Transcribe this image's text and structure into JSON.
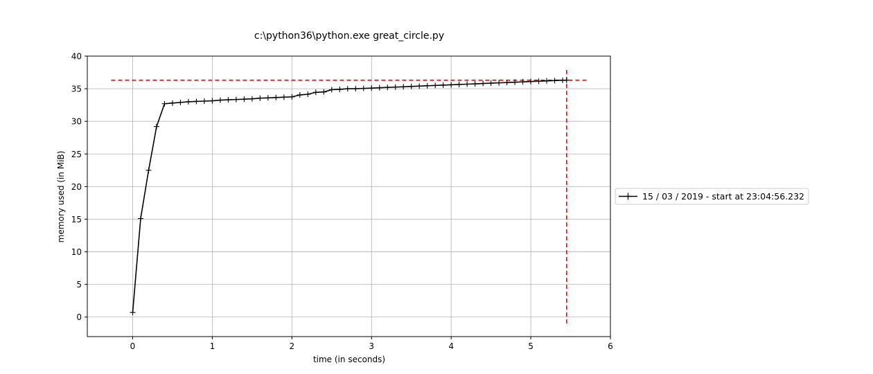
{
  "chart_data": {
    "type": "line",
    "title": "c:\\python36\\python.exe great_circle.py",
    "xlabel": "time (in seconds)",
    "ylabel": "memory used (in MiB)",
    "xlim": [
      -0.57,
      6.0
    ],
    "ylim": [
      -3.0,
      40.0
    ],
    "xticks": [
      0,
      1,
      2,
      3,
      4,
      5,
      6
    ],
    "yticks": [
      0,
      5,
      10,
      15,
      20,
      25,
      30,
      35,
      40
    ],
    "grid": true,
    "legend_position": "right",
    "series": [
      {
        "name": "15 / 03 / 2019 - start at 23:04:56.232",
        "color": "#000000",
        "marker": "plus",
        "x": [
          0.0,
          0.1,
          0.2,
          0.3,
          0.4,
          0.5,
          0.6,
          0.7,
          0.8,
          0.9,
          1.0,
          1.1,
          1.2,
          1.3,
          1.4,
          1.5,
          1.6,
          1.7,
          1.8,
          1.9,
          2.0,
          2.1,
          2.2,
          2.3,
          2.4,
          2.5,
          2.6,
          2.7,
          2.8,
          2.9,
          3.0,
          3.1,
          3.2,
          3.3,
          3.4,
          3.5,
          3.6,
          3.7,
          3.8,
          3.9,
          4.0,
          4.1,
          4.2,
          4.3,
          4.4,
          4.5,
          4.6,
          4.7,
          4.8,
          4.9,
          5.0,
          5.1,
          5.2,
          5.3,
          5.4,
          5.45
        ],
        "y": [
          0.7,
          15.1,
          22.5,
          29.2,
          32.7,
          32.8,
          32.9,
          33.0,
          33.05,
          33.1,
          33.15,
          33.25,
          33.3,
          33.35,
          33.4,
          33.45,
          33.55,
          33.6,
          33.65,
          33.7,
          33.75,
          34.05,
          34.15,
          34.45,
          34.5,
          34.85,
          34.9,
          35.0,
          35.0,
          35.05,
          35.1,
          35.15,
          35.2,
          35.25,
          35.3,
          35.35,
          35.4,
          35.45,
          35.5,
          35.55,
          35.6,
          35.65,
          35.7,
          35.75,
          35.8,
          35.85,
          35.9,
          35.95,
          36.0,
          36.05,
          36.1,
          36.15,
          36.2,
          36.25,
          36.3,
          36.3
        ]
      }
    ],
    "reference_lines": [
      {
        "orientation": "horizontal",
        "value": 36.3,
        "from": -0.27,
        "to": 5.72,
        "color": "#ff0000",
        "style": "dashed"
      },
      {
        "orientation": "vertical",
        "value": 5.45,
        "from": -1.0,
        "to": 38.0,
        "color": "#ff0000",
        "style": "dashed"
      }
    ]
  }
}
